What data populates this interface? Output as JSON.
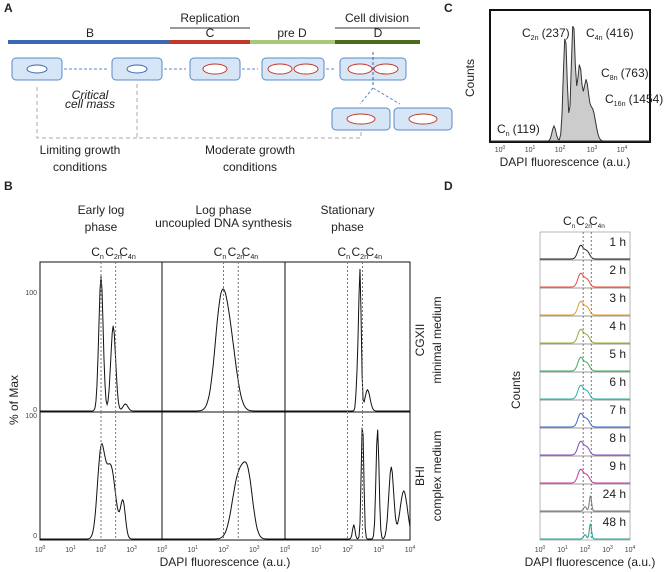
{
  "panel_a": {
    "letter": "A",
    "phase_groups": [
      "Replication",
      "Cell division"
    ],
    "phases": [
      "B",
      "C",
      "pre D",
      "D"
    ],
    "critical_mass": [
      "Critical",
      "cell mass"
    ],
    "limiting": [
      "Limiting growth",
      "conditions"
    ],
    "moderate": [
      "Moderate growth",
      "conditions"
    ]
  },
  "panel_b": {
    "letter": "B",
    "columns": [
      {
        "title": [
          "Early log",
          "phase"
        ]
      },
      {
        "title": [
          "Log phase"
        ],
        "subtitle": "uncoupled DNA synthesis"
      },
      {
        "title": [
          "Stationary",
          "phase"
        ]
      }
    ],
    "peak_labels": [
      {
        "base": "C",
        "sub": "n"
      },
      {
        "base": "C",
        "sub": "2n"
      },
      {
        "base": "C",
        "sub": "4n"
      }
    ],
    "rows": [
      {
        "name": "CGXII",
        "sub": "minimal medium"
      },
      {
        "name": "BHI",
        "sub": "complex medium"
      }
    ],
    "y_label": "% of Max",
    "y_ticks": [
      "100",
      "0"
    ],
    "x_ticks": [
      {
        "base": "10",
        "exp": "0"
      },
      {
        "base": "10",
        "exp": "1"
      },
      {
        "base": "10",
        "exp": "2"
      },
      {
        "base": "10",
        "exp": "3"
      },
      {
        "base": "10",
        "exp": "4"
      }
    ],
    "x_label": "DAPI fluorescence (a.u.)"
  },
  "panel_c": {
    "letter": "C",
    "y_label": "Counts",
    "x_label": "DAPI fluorescence (a.u.)",
    "x_ticks": [
      {
        "base": "10",
        "exp": "0"
      },
      {
        "base": "10",
        "exp": "1"
      },
      {
        "base": "10",
        "exp": "2"
      },
      {
        "base": "10",
        "exp": "3"
      },
      {
        "base": "10",
        "exp": "4"
      }
    ],
    "peaks": [
      {
        "base": "C",
        "sub": "n",
        "count": "(119)"
      },
      {
        "base": "C",
        "sub": "2n",
        "count": "(237)"
      },
      {
        "base": "C",
        "sub": "4n",
        "count": "(416)"
      },
      {
        "base": "C",
        "sub": "8n",
        "count": "(763)"
      },
      {
        "base": "C",
        "sub": "16n",
        "count": "(1454)"
      }
    ]
  },
  "panel_d": {
    "letter": "D",
    "peak_labels": [
      {
        "base": "C",
        "sub": "n"
      },
      {
        "base": "C",
        "sub": "2n"
      },
      {
        "base": "C",
        "sub": "4n"
      }
    ],
    "times": [
      "1 h",
      "2 h",
      "3 h",
      "4 h",
      "5 h",
      "6 h",
      "7 h",
      "8 h",
      "9 h",
      "24 h",
      "48 h"
    ],
    "y_label": "Counts",
    "x_label": "DAPI fluorescence (a.u.)",
    "x_ticks": [
      {
        "base": "10",
        "exp": "0"
      },
      {
        "base": "10",
        "exp": "1"
      },
      {
        "base": "10",
        "exp": "2"
      },
      {
        "base": "10",
        "exp": "3"
      },
      {
        "base": "10",
        "exp": "4"
      }
    ]
  }
}
